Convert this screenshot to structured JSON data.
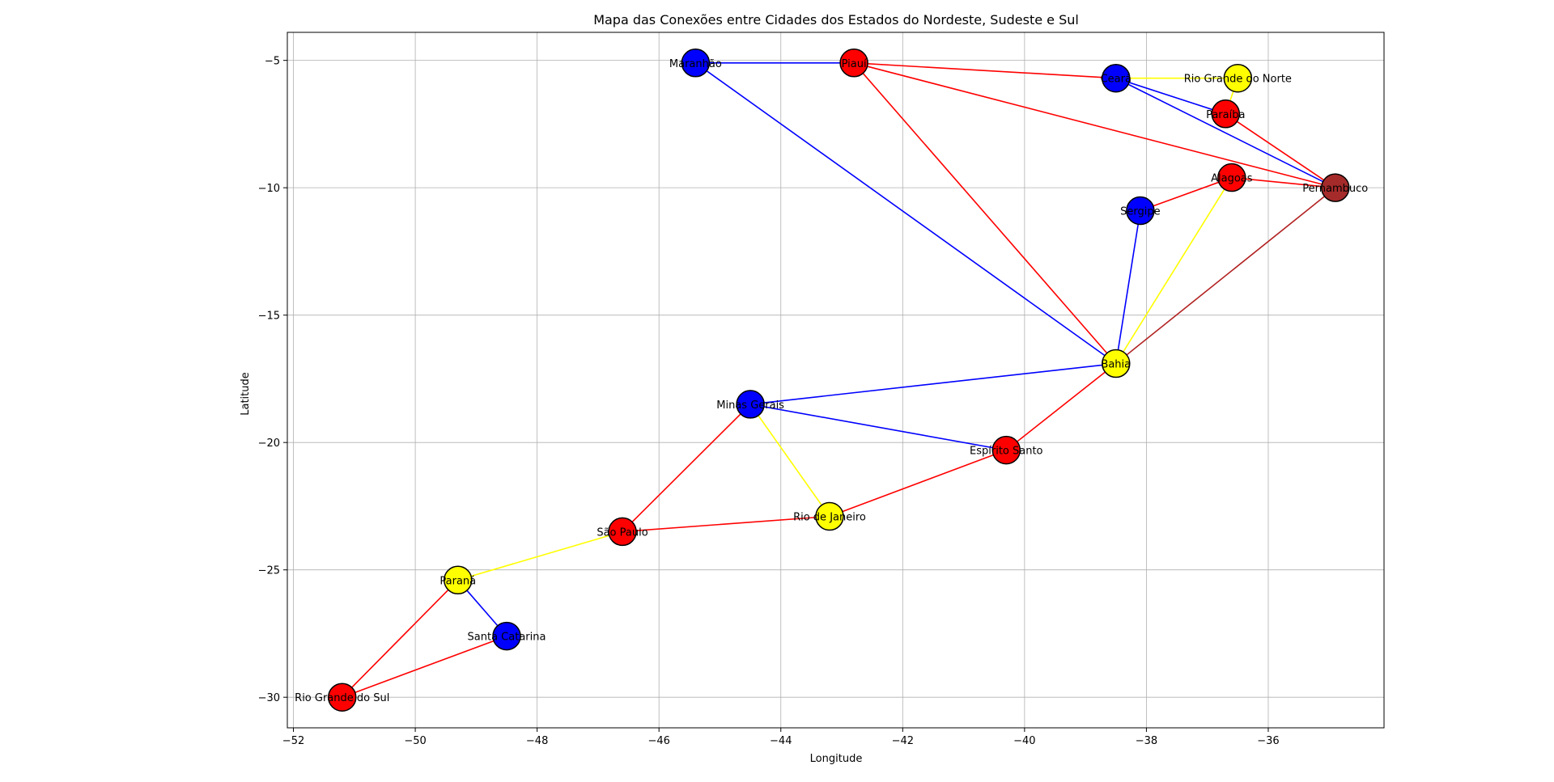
{
  "chart_data": {
    "type": "scatter",
    "title": "Mapa das Conexões entre Cidades dos Estados do Nordeste, Sudeste e Sul",
    "xlabel": "Longitude",
    "ylabel": "Latitude",
    "xlim": [
      -52.1,
      -34.1
    ],
    "ylim": [
      -31.2,
      -3.9
    ],
    "xticks": [
      -52,
      -50,
      -48,
      -46,
      -44,
      -42,
      -40,
      -38,
      -36
    ],
    "yticks": [
      -5,
      -10,
      -15,
      -20,
      -25,
      -30
    ],
    "grid": true,
    "nodes": [
      {
        "name": "Maranhão",
        "x": -45.4,
        "y": -5.1,
        "color": "#0000ff"
      },
      {
        "name": "Piauí",
        "x": -42.8,
        "y": -5.1,
        "color": "#ff0000"
      },
      {
        "name": "Ceará",
        "x": -38.5,
        "y": -5.7,
        "color": "#0000ff"
      },
      {
        "name": "Rio Grande do Norte",
        "x": -36.5,
        "y": -5.7,
        "color": "#ffff00"
      },
      {
        "name": "Paraíba",
        "x": -36.7,
        "y": -7.1,
        "color": "#ff0000"
      },
      {
        "name": "Pernambuco",
        "x": -34.9,
        "y": -10.0,
        "color": "#a52a2a"
      },
      {
        "name": "Alagoas",
        "x": -36.6,
        "y": -9.6,
        "color": "#ff0000"
      },
      {
        "name": "Sergipe",
        "x": -38.1,
        "y": -10.9,
        "color": "#0000ff"
      },
      {
        "name": "Bahia",
        "x": -38.5,
        "y": -16.9,
        "color": "#ffff00"
      },
      {
        "name": "Minas Gerais",
        "x": -44.5,
        "y": -18.5,
        "color": "#0000ff"
      },
      {
        "name": "Espírito Santo",
        "x": -40.3,
        "y": -20.3,
        "color": "#ff0000"
      },
      {
        "name": "Rio de Janeiro",
        "x": -43.2,
        "y": -22.9,
        "color": "#ffff00"
      },
      {
        "name": "São Paulo",
        "x": -46.6,
        "y": -23.5,
        "color": "#ff0000"
      },
      {
        "name": "Paraná",
        "x": -49.3,
        "y": -25.4,
        "color": "#ffff00"
      },
      {
        "name": "Santa Catarina",
        "x": -48.5,
        "y": -27.6,
        "color": "#0000ff"
      },
      {
        "name": "Rio Grande do Sul",
        "x": -51.2,
        "y": -30.0,
        "color": "#ff0000"
      }
    ],
    "edges": [
      {
        "from": "Maranhão",
        "to": "Piauí",
        "color": "#0000ff"
      },
      {
        "from": "Maranhão",
        "to": "Bahia",
        "color": "#0000ff"
      },
      {
        "from": "Piauí",
        "to": "Ceará",
        "color": "#ff0000"
      },
      {
        "from": "Piauí",
        "to": "Pernambuco",
        "color": "#ff0000"
      },
      {
        "from": "Piauí",
        "to": "Bahia",
        "color": "#ff0000"
      },
      {
        "from": "Ceará",
        "to": "Rio Grande do Norte",
        "color": "#ffff00"
      },
      {
        "from": "Ceará",
        "to": "Paraíba",
        "color": "#0000ff"
      },
      {
        "from": "Ceará",
        "to": "Pernambuco",
        "color": "#0000ff"
      },
      {
        "from": "Rio Grande do Norte",
        "to": "Paraíba",
        "color": "#ffff00"
      },
      {
        "from": "Paraíba",
        "to": "Pernambuco",
        "color": "#ff0000"
      },
      {
        "from": "Pernambuco",
        "to": "Alagoas",
        "color": "#ff0000"
      },
      {
        "from": "Pernambuco",
        "to": "Bahia",
        "color": "#b22222"
      },
      {
        "from": "Alagoas",
        "to": "Sergipe",
        "color": "#ff0000"
      },
      {
        "from": "Alagoas",
        "to": "Bahia",
        "color": "#ffff00"
      },
      {
        "from": "Sergipe",
        "to": "Bahia",
        "color": "#0000ff"
      },
      {
        "from": "Bahia",
        "to": "Minas Gerais",
        "color": "#0000ff"
      },
      {
        "from": "Bahia",
        "to": "Espírito Santo",
        "color": "#ff0000"
      },
      {
        "from": "Minas Gerais",
        "to": "Espírito Santo",
        "color": "#0000ff"
      },
      {
        "from": "Minas Gerais",
        "to": "Rio de Janeiro",
        "color": "#ffff00"
      },
      {
        "from": "Minas Gerais",
        "to": "São Paulo",
        "color": "#ff0000"
      },
      {
        "from": "Espírito Santo",
        "to": "Rio de Janeiro",
        "color": "#ff0000"
      },
      {
        "from": "Rio de Janeiro",
        "to": "São Paulo",
        "color": "#ff0000"
      },
      {
        "from": "São Paulo",
        "to": "Paraná",
        "color": "#ffff00"
      },
      {
        "from": "Paraná",
        "to": "Santa Catarina",
        "color": "#0000ff"
      },
      {
        "from": "Paraná",
        "to": "Rio Grande do Sul",
        "color": "#ff0000"
      },
      {
        "from": "Santa Catarina",
        "to": "Rio Grande do Sul",
        "color": "#ff0000"
      }
    ]
  }
}
